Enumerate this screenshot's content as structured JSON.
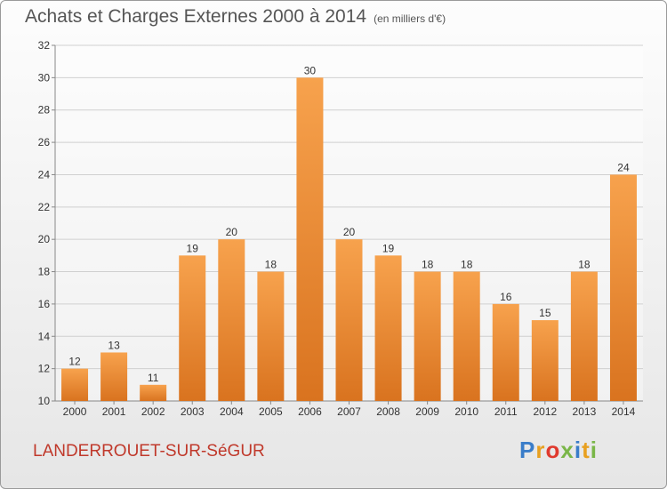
{
  "chart_data": {
    "type": "bar",
    "title": "Achats et Charges Externes 2000 à 2014",
    "subtitle": "(en milliers d'€)",
    "categories": [
      "2000",
      "2001",
      "2002",
      "2003",
      "2004",
      "2005",
      "2006",
      "2007",
      "2008",
      "2009",
      "2010",
      "2011",
      "2012",
      "2013",
      "2014"
    ],
    "values": [
      12,
      13,
      11,
      19,
      20,
      18,
      30,
      20,
      19,
      18,
      18,
      16,
      15,
      18,
      24
    ],
    "ylim": [
      10,
      32
    ],
    "yticks": [
      10,
      12,
      14,
      16,
      18,
      20,
      22,
      24,
      26,
      28,
      30,
      32
    ],
    "grid": true,
    "bar_color": "#f39c3e",
    "bar_color_dark": "#d9731f"
  },
  "footer": {
    "commune": "LANDERROUET-SUR-SéGUR",
    "commune_color": "#c0392b",
    "brand_letters": [
      "P",
      "r",
      "o",
      "x",
      "i",
      "t",
      "i"
    ],
    "brand_colors": [
      "#3a7dc9",
      "#e8a020",
      "#e03a2e",
      "#7ab648",
      "#3a7dc9",
      "#e8a020",
      "#7ab648"
    ]
  }
}
